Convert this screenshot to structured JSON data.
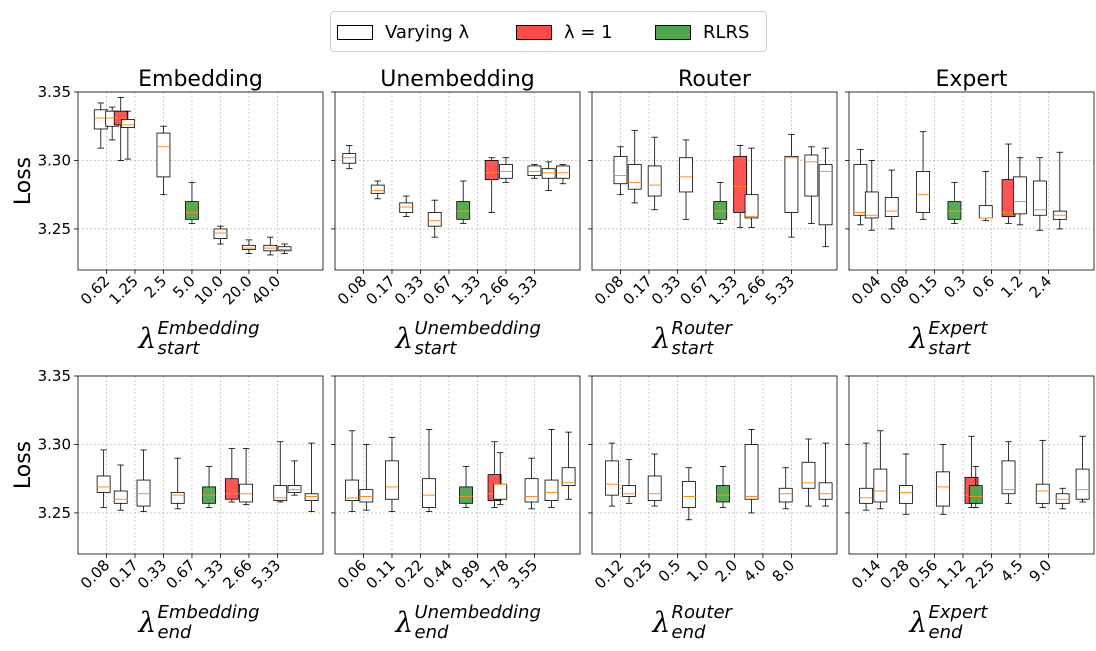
{
  "legend": {
    "varying": {
      "label": "Varying λ",
      "color": "#ffffff"
    },
    "lambda1": {
      "label": "λ = 1",
      "color": "#ff4b4b"
    },
    "rlrs": {
      "label": "RLRS",
      "color": "#4da64d"
    }
  },
  "colors": {
    "median": "#ff8c1a",
    "grid": "#b0b0b0"
  },
  "y_axis": {
    "label": "Loss",
    "ylim": [
      3.22,
      3.35
    ],
    "ticks": [
      3.25,
      3.3,
      3.35
    ]
  },
  "chart_data": [
    {
      "type": "box",
      "title": "Embedding",
      "lambda_sub": "start",
      "lambda_sup": "Embedding",
      "categories": [
        "0.62",
        "1.25",
        "2.5",
        "5.0",
        "10.0",
        "20.0",
        "40.0"
      ],
      "boxes": [
        {
          "pos": 0.8,
          "min": 3.309,
          "q1": 3.323,
          "med": 3.331,
          "q3": 3.337,
          "max": 3.342,
          "fill": "varying"
        },
        {
          "pos": 1.2,
          "min": 3.315,
          "q1": 3.325,
          "med": 3.331,
          "q3": 3.336,
          "max": 3.339,
          "fill": "varying"
        },
        {
          "pos": 1.5,
          "min": 3.3,
          "q1": 3.326,
          "med": 3.331,
          "q3": 3.336,
          "max": 3.346,
          "fill": "lambda1"
        },
        {
          "pos": 1.75,
          "min": 3.301,
          "q1": 3.324,
          "med": 3.326,
          "q3": 3.33,
          "max": 3.336,
          "fill": "varying"
        },
        {
          "pos": 3.0,
          "min": 3.275,
          "q1": 3.288,
          "med": 3.31,
          "q3": 3.32,
          "max": 3.325,
          "fill": "varying"
        },
        {
          "pos": 4.0,
          "min": 3.254,
          "q1": 3.257,
          "med": 3.262,
          "q3": 3.27,
          "max": 3.284,
          "fill": "rlrs"
        },
        {
          "pos": 5.0,
          "min": 3.239,
          "q1": 3.243,
          "med": 3.247,
          "q3": 3.25,
          "max": 3.252,
          "fill": "varying"
        },
        {
          "pos": 6.0,
          "min": 3.232,
          "q1": 3.235,
          "med": 3.236,
          "q3": 3.238,
          "max": 3.242,
          "fill": "varying"
        },
        {
          "pos": 6.75,
          "min": 3.231,
          "q1": 3.234,
          "med": 3.236,
          "q3": 3.238,
          "max": 3.244,
          "fill": "varying"
        },
        {
          "pos": 7.25,
          "min": 3.232,
          "q1": 3.234,
          "med": 3.235,
          "q3": 3.237,
          "max": 3.239,
          "fill": "varying"
        }
      ]
    },
    {
      "type": "box",
      "title": "Unembedding",
      "lambda_sub": "start",
      "lambda_sup": "Unembedding",
      "categories": [
        "0.08",
        "0.17",
        "0.33",
        "0.67",
        "1.33",
        "2.66",
        "5.33"
      ],
      "boxes": [
        {
          "pos": 0.5,
          "min": 3.294,
          "q1": 3.298,
          "med": 3.302,
          "q3": 3.305,
          "max": 3.311,
          "fill": "varying"
        },
        {
          "pos": 1.5,
          "min": 3.272,
          "q1": 3.276,
          "med": 3.278,
          "q3": 3.282,
          "max": 3.285,
          "fill": "varying"
        },
        {
          "pos": 2.5,
          "min": 3.259,
          "q1": 3.262,
          "med": 3.266,
          "q3": 3.269,
          "max": 3.274,
          "fill": "varying"
        },
        {
          "pos": 3.5,
          "min": 3.244,
          "q1": 3.252,
          "med": 3.256,
          "q3": 3.262,
          "max": 3.271,
          "fill": "varying"
        },
        {
          "pos": 4.5,
          "min": 3.254,
          "q1": 3.257,
          "med": 3.263,
          "q3": 3.27,
          "max": 3.285,
          "fill": "rlrs"
        },
        {
          "pos": 5.5,
          "min": 3.262,
          "q1": 3.286,
          "med": 3.291,
          "q3": 3.3,
          "max": 3.302,
          "fill": "lambda1"
        },
        {
          "pos": 6.0,
          "min": 3.284,
          "q1": 3.287,
          "med": 3.292,
          "q3": 3.297,
          "max": 3.302,
          "fill": "varying"
        },
        {
          "pos": 7.0,
          "min": 3.287,
          "q1": 3.289,
          "med": 3.292,
          "q3": 3.296,
          "max": 3.297,
          "fill": "varying"
        },
        {
          "pos": 7.5,
          "min": 3.278,
          "q1": 3.287,
          "med": 3.291,
          "q3": 3.294,
          "max": 3.299,
          "fill": "varying"
        },
        {
          "pos": 8.0,
          "min": 3.283,
          "q1": 3.287,
          "med": 3.291,
          "q3": 3.296,
          "max": 3.297,
          "fill": "varying"
        }
      ]
    },
    {
      "type": "box",
      "title": "Router",
      "lambda_sub": "start",
      "lambda_sup": "Router",
      "categories": [
        "0.08",
        "0.17",
        "0.33",
        "0.67",
        "1.33",
        "2.66",
        "5.33"
      ],
      "boxes": [
        {
          "pos": 1.0,
          "min": 3.275,
          "q1": 3.283,
          "med": 3.289,
          "q3": 3.303,
          "max": 3.31,
          "fill": "varying"
        },
        {
          "pos": 1.5,
          "min": 3.269,
          "q1": 3.279,
          "med": 3.284,
          "q3": 3.297,
          "max": 3.322,
          "fill": "varying"
        },
        {
          "pos": 2.2,
          "min": 3.264,
          "q1": 3.274,
          "med": 3.282,
          "q3": 3.296,
          "max": 3.317,
          "fill": "varying"
        },
        {
          "pos": 3.3,
          "min": 3.257,
          "q1": 3.277,
          "med": 3.288,
          "q3": 3.302,
          "max": 3.315,
          "fill": "varying"
        },
        {
          "pos": 4.5,
          "min": 3.254,
          "q1": 3.257,
          "med": 3.263,
          "q3": 3.27,
          "max": 3.284,
          "fill": "rlrs"
        },
        {
          "pos": 5.2,
          "min": 3.251,
          "q1": 3.262,
          "med": 3.281,
          "q3": 3.303,
          "max": 3.311,
          "fill": "lambda1"
        },
        {
          "pos": 5.6,
          "min": 3.251,
          "q1": 3.258,
          "med": 3.259,
          "q3": 3.275,
          "max": 3.309,
          "fill": "varying"
        },
        {
          "pos": 7.0,
          "min": 3.244,
          "q1": 3.262,
          "med": 3.302,
          "q3": 3.303,
          "max": 3.319,
          "fill": "varying"
        },
        {
          "pos": 7.7,
          "min": 3.254,
          "q1": 3.274,
          "med": 3.299,
          "q3": 3.304,
          "max": 3.31,
          "fill": "varying"
        },
        {
          "pos": 8.2,
          "min": 3.237,
          "q1": 3.253,
          "med": 3.292,
          "q3": 3.297,
          "max": 3.309,
          "fill": "varying"
        }
      ]
    },
    {
      "type": "box",
      "title": "Expert",
      "lambda_sub": "start",
      "lambda_sup": "Expert",
      "categories": [
        "0.04",
        "0.08",
        "0.15",
        "0.3",
        "0.6",
        "1.2",
        "2.4"
      ],
      "boxes": [
        {
          "pos": 0.4,
          "min": 3.253,
          "q1": 3.26,
          "med": 3.262,
          "q3": 3.297,
          "max": 3.308,
          "fill": "varying"
        },
        {
          "pos": 0.8,
          "min": 3.249,
          "q1": 3.258,
          "med": 3.26,
          "q3": 3.277,
          "max": 3.3,
          "fill": "varying"
        },
        {
          "pos": 1.5,
          "min": 3.25,
          "q1": 3.259,
          "med": 3.263,
          "q3": 3.273,
          "max": 3.293,
          "fill": "varying"
        },
        {
          "pos": 2.6,
          "min": 3.257,
          "q1": 3.262,
          "med": 3.275,
          "q3": 3.292,
          "max": 3.321,
          "fill": "varying"
        },
        {
          "pos": 3.7,
          "min": 3.254,
          "q1": 3.257,
          "med": 3.263,
          "q3": 3.27,
          "max": 3.284,
          "fill": "rlrs"
        },
        {
          "pos": 4.8,
          "min": 3.256,
          "q1": 3.258,
          "med": 3.258,
          "q3": 3.267,
          "max": 3.292,
          "fill": "varying"
        },
        {
          "pos": 5.6,
          "min": 3.254,
          "q1": 3.259,
          "med": 3.262,
          "q3": 3.286,
          "max": 3.312,
          "fill": "lambda1"
        },
        {
          "pos": 6.0,
          "min": 3.253,
          "q1": 3.261,
          "med": 3.27,
          "q3": 3.288,
          "max": 3.302,
          "fill": "varying"
        },
        {
          "pos": 6.7,
          "min": 3.249,
          "q1": 3.26,
          "med": 3.264,
          "q3": 3.285,
          "max": 3.302,
          "fill": "varying"
        },
        {
          "pos": 7.4,
          "min": 3.25,
          "q1": 3.257,
          "med": 3.26,
          "q3": 3.263,
          "max": 3.306,
          "fill": "varying"
        }
      ]
    },
    {
      "type": "box",
      "title": "",
      "lambda_sub": "end",
      "lambda_sup": "Embedding",
      "categories": [
        "0.08",
        "0.17",
        "0.33",
        "0.67",
        "1.33",
        "2.66",
        "5.33"
      ],
      "boxes": [
        {
          "pos": 0.9,
          "min": 3.254,
          "q1": 3.265,
          "med": 3.269,
          "q3": 3.277,
          "max": 3.296,
          "fill": "varying"
        },
        {
          "pos": 1.5,
          "min": 3.252,
          "q1": 3.257,
          "med": 3.26,
          "q3": 3.266,
          "max": 3.285,
          "fill": "varying"
        },
        {
          "pos": 2.3,
          "min": 3.251,
          "q1": 3.255,
          "med": 3.264,
          "q3": 3.274,
          "max": 3.296,
          "fill": "varying"
        },
        {
          "pos": 3.5,
          "min": 3.253,
          "q1": 3.257,
          "med": 3.263,
          "q3": 3.265,
          "max": 3.29,
          "fill": "varying"
        },
        {
          "pos": 4.6,
          "min": 3.254,
          "q1": 3.257,
          "med": 3.263,
          "q3": 3.269,
          "max": 3.284,
          "fill": "rlrs"
        },
        {
          "pos": 5.4,
          "min": 3.258,
          "q1": 3.26,
          "med": 3.264,
          "q3": 3.275,
          "max": 3.297,
          "fill": "lambda1"
        },
        {
          "pos": 5.9,
          "min": 3.256,
          "q1": 3.258,
          "med": 3.264,
          "q3": 3.271,
          "max": 3.297,
          "fill": "varying"
        },
        {
          "pos": 7.1,
          "min": 3.258,
          "q1": 3.259,
          "med": 3.261,
          "q3": 3.27,
          "max": 3.302,
          "fill": "varying"
        },
        {
          "pos": 7.6,
          "min": 3.263,
          "q1": 3.265,
          "med": 3.267,
          "q3": 3.27,
          "max": 3.288,
          "fill": "varying"
        },
        {
          "pos": 8.2,
          "min": 3.251,
          "q1": 3.259,
          "med": 3.262,
          "q3": 3.264,
          "max": 3.301,
          "fill": "varying"
        }
      ]
    },
    {
      "type": "box",
      "title": "",
      "lambda_sub": "end",
      "lambda_sup": "Unembedding",
      "categories": [
        "0.06",
        "0.11",
        "0.22",
        "0.44",
        "0.89",
        "1.78",
        "3.55"
      ],
      "boxes": [
        {
          "pos": 0.6,
          "min": 3.251,
          "q1": 3.259,
          "med": 3.261,
          "q3": 3.274,
          "max": 3.31,
          "fill": "varying"
        },
        {
          "pos": 1.1,
          "min": 3.252,
          "q1": 3.258,
          "med": 3.262,
          "q3": 3.267,
          "max": 3.3,
          "fill": "varying"
        },
        {
          "pos": 2.0,
          "min": 3.251,
          "q1": 3.26,
          "med": 3.269,
          "q3": 3.288,
          "max": 3.305,
          "fill": "varying"
        },
        {
          "pos": 3.3,
          "min": 3.251,
          "q1": 3.254,
          "med": 3.263,
          "q3": 3.275,
          "max": 3.311,
          "fill": "varying"
        },
        {
          "pos": 4.6,
          "min": 3.254,
          "q1": 3.257,
          "med": 3.262,
          "q3": 3.269,
          "max": 3.284,
          "fill": "rlrs"
        },
        {
          "pos": 5.6,
          "min": 3.254,
          "q1": 3.259,
          "med": 3.264,
          "q3": 3.278,
          "max": 3.302,
          "fill": "lambda1"
        },
        {
          "pos": 5.8,
          "min": 3.256,
          "q1": 3.26,
          "med": 3.271,
          "q3": 3.271,
          "max": 3.294,
          "fill": "varying"
        },
        {
          "pos": 6.9,
          "min": 3.253,
          "q1": 3.258,
          "med": 3.262,
          "q3": 3.275,
          "max": 3.29,
          "fill": "varying"
        },
        {
          "pos": 7.6,
          "min": 3.254,
          "q1": 3.259,
          "med": 3.265,
          "q3": 3.274,
          "max": 3.311,
          "fill": "varying"
        },
        {
          "pos": 8.2,
          "min": 3.26,
          "q1": 3.27,
          "med": 3.272,
          "q3": 3.283,
          "max": 3.309,
          "fill": "varying"
        }
      ]
    },
    {
      "type": "box",
      "title": "",
      "lambda_sub": "end",
      "lambda_sup": "Router",
      "categories": [
        "0.12",
        "0.25",
        "0.5",
        "1.0",
        "2.0",
        "4.0",
        "8.0"
      ],
      "boxes": [
        {
          "pos": 0.7,
          "min": 3.255,
          "q1": 3.263,
          "med": 3.271,
          "q3": 3.288,
          "max": 3.301,
          "fill": "varying"
        },
        {
          "pos": 1.3,
          "min": 3.257,
          "q1": 3.262,
          "med": 3.264,
          "q3": 3.27,
          "max": 3.289,
          "fill": "varying"
        },
        {
          "pos": 2.2,
          "min": 3.255,
          "q1": 3.259,
          "med": 3.264,
          "q3": 3.277,
          "max": 3.293,
          "fill": "varying"
        },
        {
          "pos": 3.4,
          "min": 3.245,
          "q1": 3.254,
          "med": 3.262,
          "q3": 3.273,
          "max": 3.283,
          "fill": "varying"
        },
        {
          "pos": 4.6,
          "min": 3.254,
          "q1": 3.258,
          "med": 3.263,
          "q3": 3.27,
          "max": 3.284,
          "fill": "rlrs"
        },
        {
          "pos": 5.6,
          "min": 3.25,
          "q1": 3.26,
          "med": 3.262,
          "q3": 3.3,
          "max": 3.311,
          "fill": "varying"
        },
        {
          "pos": 6.8,
          "min": 3.253,
          "q1": 3.258,
          "med": 3.264,
          "q3": 3.268,
          "max": 3.283,
          "fill": "varying"
        },
        {
          "pos": 7.6,
          "min": 3.255,
          "q1": 3.268,
          "med": 3.272,
          "q3": 3.287,
          "max": 3.304,
          "fill": "varying"
        },
        {
          "pos": 8.2,
          "min": 3.255,
          "q1": 3.26,
          "med": 3.264,
          "q3": 3.272,
          "max": 3.301,
          "fill": "varying"
        }
      ]
    },
    {
      "type": "box",
      "title": "",
      "lambda_sub": "end",
      "lambda_sup": "Expert",
      "categories": [
        "0.14",
        "0.28",
        "0.56",
        "1.12",
        "2.25",
        "4.5",
        "9.0"
      ],
      "boxes": [
        {
          "pos": 0.6,
          "min": 3.252,
          "q1": 3.257,
          "med": 3.261,
          "q3": 3.268,
          "max": 3.301,
          "fill": "varying"
        },
        {
          "pos": 1.1,
          "min": 3.253,
          "q1": 3.258,
          "med": 3.266,
          "q3": 3.282,
          "max": 3.31,
          "fill": "varying"
        },
        {
          "pos": 2.0,
          "min": 3.249,
          "q1": 3.257,
          "med": 3.265,
          "q3": 3.27,
          "max": 3.293,
          "fill": "varying"
        },
        {
          "pos": 3.3,
          "min": 3.249,
          "q1": 3.255,
          "med": 3.269,
          "q3": 3.28,
          "max": 3.3,
          "fill": "varying"
        },
        {
          "pos": 4.3,
          "min": 3.254,
          "q1": 3.257,
          "med": 3.263,
          "q3": 3.276,
          "max": 3.306,
          "fill": "lambda1"
        },
        {
          "pos": 4.45,
          "min": 3.254,
          "q1": 3.257,
          "med": 3.262,
          "q3": 3.27,
          "max": 3.284,
          "fill": "rlrs"
        },
        {
          "pos": 5.6,
          "min": 3.257,
          "q1": 3.264,
          "med": 3.267,
          "q3": 3.288,
          "max": 3.302,
          "fill": "varying"
        },
        {
          "pos": 6.8,
          "min": 3.254,
          "q1": 3.257,
          "med": 3.266,
          "q3": 3.271,
          "max": 3.303,
          "fill": "varying"
        },
        {
          "pos": 7.5,
          "min": 3.253,
          "q1": 3.257,
          "med": 3.26,
          "q3": 3.264,
          "max": 3.268,
          "fill": "varying"
        },
        {
          "pos": 8.2,
          "min": 3.258,
          "q1": 3.26,
          "med": 3.267,
          "q3": 3.282,
          "max": 3.306,
          "fill": "varying"
        }
      ]
    }
  ]
}
